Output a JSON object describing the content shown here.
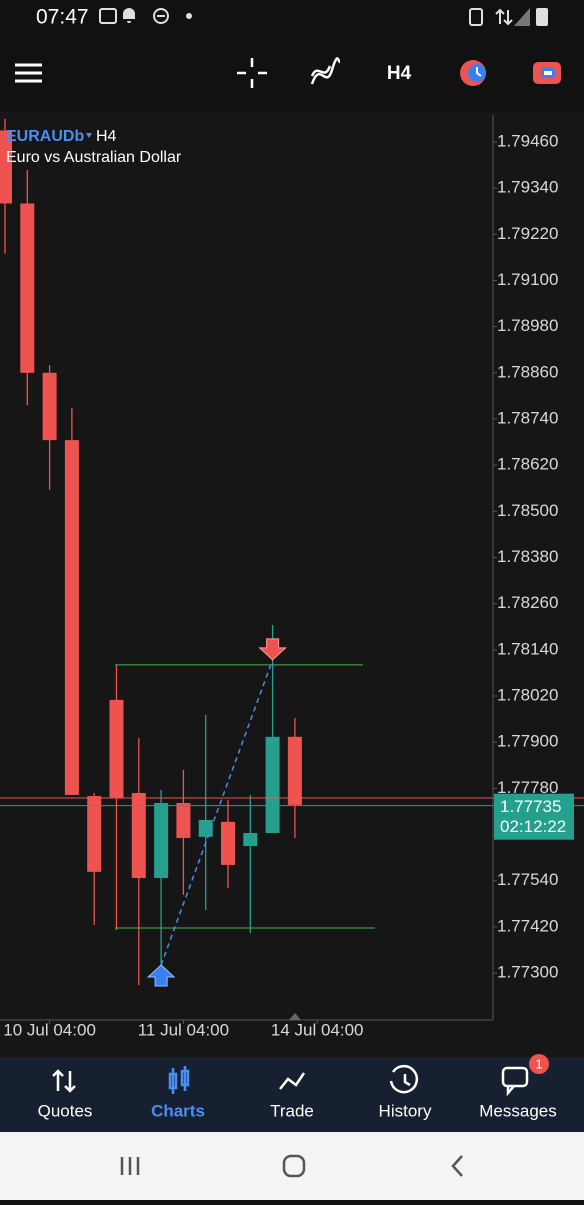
{
  "status_bar": {
    "time": "07:47"
  },
  "toolbar": {
    "timeframe": "H4"
  },
  "chart_data": {
    "type": "candlestick",
    "symbol": "EURAUDb",
    "timeframe": "H4",
    "description": "Euro vs Australian Dollar",
    "open": [
      1.7949,
      1.793,
      1.7886,
      1.78685,
      1.7776,
      1.7801,
      1.77768,
      1.77547,
      1.77742,
      1.77654,
      1.77693,
      1.7763,
      1.77664,
      1.77914
    ],
    "high": [
      1.7952,
      1.79387,
      1.7888,
      1.78769,
      1.77768,
      1.78101,
      1.77911,
      1.77776,
      1.77828,
      1.77971,
      1.7775,
      1.77763,
      1.78205,
      1.77963
    ],
    "low": [
      1.7917,
      1.78776,
      1.78556,
      1.77763,
      1.77425,
      1.77412,
      1.77269,
      1.77321,
      1.77503,
      1.77464,
      1.77521,
      1.77404,
      1.77664,
      1.77651
    ],
    "close": [
      1.793,
      1.7886,
      1.78685,
      1.77763,
      1.77563,
      1.77755,
      1.77547,
      1.77742,
      1.77651,
      1.77698,
      1.77581,
      1.77664,
      1.77914,
      1.77737
    ],
    "up_color": "#26a08e",
    "down_color": "#ef5350",
    "ylim": [
      1.77178,
      1.7953
    ],
    "yticks": [
      {
        "value": 1.7946,
        "label": "1.79460"
      },
      {
        "value": 1.7934,
        "label": "1.79340"
      },
      {
        "value": 1.7922,
        "label": "1.79220"
      },
      {
        "value": 1.791,
        "label": "1.79100"
      },
      {
        "value": 1.7898,
        "label": "1.78980"
      },
      {
        "value": 1.7886,
        "label": "1.78860"
      },
      {
        "value": 1.7874,
        "label": "1.78740"
      },
      {
        "value": 1.7862,
        "label": "1.78620"
      },
      {
        "value": 1.785,
        "label": "1.78500"
      },
      {
        "value": 1.7838,
        "label": "1.78380"
      },
      {
        "value": 1.7826,
        "label": "1.78260"
      },
      {
        "value": 1.7814,
        "label": "1.78140"
      },
      {
        "value": 1.7802,
        "label": "1.78020"
      },
      {
        "value": 1.779,
        "label": "1.77900"
      },
      {
        "value": 1.7778,
        "label": "1.77780"
      },
      {
        "value": 1.7766,
        "label": "1.77660"
      },
      {
        "value": 1.7754,
        "label": "1.77540"
      },
      {
        "value": 1.7742,
        "label": "1.77420"
      },
      {
        "value": 1.773,
        "label": "1.77300"
      }
    ],
    "xticks": [
      {
        "value": 2,
        "label": "10 Jul 04:00"
      },
      {
        "value": 8,
        "label": "11 Jul 04:00"
      },
      {
        "value": 14,
        "label": "14 Jul 04:00"
      }
    ],
    "ask": 1.77755,
    "bid": 1.77735,
    "countdown": "02:12:22",
    "levels": [
      1.78101,
      1.77417
    ],
    "trade": {
      "open_index": 7,
      "open_price": 1.77321,
      "close_index": 12,
      "close_price": 1.78114
    }
  },
  "bottom_nav": {
    "tabs": [
      "Quotes",
      "Charts",
      "Trade",
      "History",
      "Messages"
    ],
    "badge": "1"
  }
}
